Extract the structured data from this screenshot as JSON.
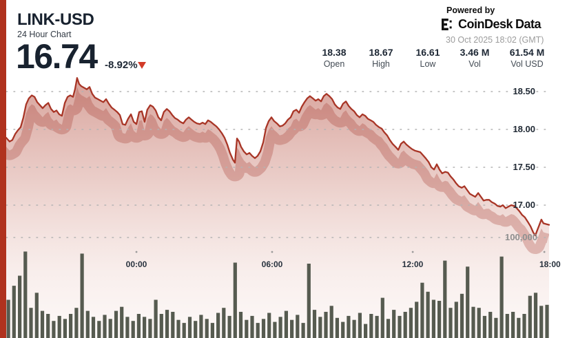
{
  "header": {
    "symbol": "LINK-USD",
    "subtitle": "24 Hour Chart",
    "price": "16.74",
    "change": "-8.92%",
    "direction": "down"
  },
  "branding": {
    "powered_by": "Powered by",
    "logo_coin": "CoinDesk",
    "logo_data": "Data",
    "timestamp": "30 Oct 2025 18:02 (GMT)"
  },
  "stats": [
    {
      "value": "18.38",
      "label": "Open"
    },
    {
      "value": "18.67",
      "label": "High"
    },
    {
      "value": "16.61",
      "label": "Low"
    },
    {
      "value": "3.46 M",
      "label": "Vol"
    },
    {
      "value": "61.54 M",
      "label": "Vol USD"
    }
  ],
  "colors": {
    "accent_red": "#b0321e",
    "line_red": "#a83526",
    "triangle_red": "#d23b28",
    "volume_bar": "#565b50",
    "title_navy": "#18222f",
    "grid_gray": "#b3b3b3",
    "muted_gray": "#9c9c9c"
  },
  "chart_data": {
    "type": "area",
    "title": "LINK-USD 24 Hour Chart",
    "x_unit": "hours since window start (24h window ending 18:00 GMT, 30 Oct 2025)",
    "x_tick_labels": [
      "00:00",
      "06:00",
      "12:00",
      "18:00"
    ],
    "x_tick_hours": [
      5.75,
      11.74,
      17.95,
      23.76
    ],
    "y_ticks": [
      "18.50",
      "18.00",
      "17.50",
      "17.00"
    ],
    "y_tick_values": [
      18.5,
      18.0,
      17.5,
      17.0
    ],
    "volume_tick": "100,000",
    "volume_tick_value": 100000,
    "price_range_shown": [
      16.55,
      18.75
    ],
    "grid": "dotted",
    "legend": "none",
    "price_points": [
      [
        0,
        17.89
      ],
      [
        0.15,
        17.84
      ],
      [
        0.27,
        17.86
      ],
      [
        0.4,
        17.94
      ],
      [
        0.52,
        17.99
      ],
      [
        0.64,
        18.03
      ],
      [
        0.76,
        18.16
      ],
      [
        0.88,
        18.33
      ],
      [
        1,
        18.41
      ],
      [
        1.13,
        18.45
      ],
      [
        1.25,
        18.43
      ],
      [
        1.37,
        18.36
      ],
      [
        1.49,
        18.32
      ],
      [
        1.61,
        18.28
      ],
      [
        1.73,
        18.32
      ],
      [
        1.86,
        18.35
      ],
      [
        1.98,
        18.27
      ],
      [
        2.1,
        18.23
      ],
      [
        2.22,
        18.25
      ],
      [
        2.34,
        18.2
      ],
      [
        2.46,
        18.18
      ],
      [
        2.59,
        18.35
      ],
      [
        2.71,
        18.43
      ],
      [
        2.83,
        18.45
      ],
      [
        2.95,
        18.43
      ],
      [
        3.04,
        18.53
      ],
      [
        3.13,
        18.68
      ],
      [
        3.22,
        18.6
      ],
      [
        3.32,
        18.57
      ],
      [
        3.44,
        18.55
      ],
      [
        3.56,
        18.53
      ],
      [
        3.68,
        18.56
      ],
      [
        3.8,
        18.47
      ],
      [
        3.92,
        18.42
      ],
      [
        4.05,
        18.4
      ],
      [
        4.17,
        18.38
      ],
      [
        4.29,
        18.36
      ],
      [
        4.41,
        18.4
      ],
      [
        4.53,
        18.34
      ],
      [
        4.65,
        18.29
      ],
      [
        4.78,
        18.26
      ],
      [
        4.9,
        18.23
      ],
      [
        5.02,
        18.19
      ],
      [
        5.14,
        18.07
      ],
      [
        5.26,
        18.06
      ],
      [
        5.38,
        18.14
      ],
      [
        5.51,
        18.2
      ],
      [
        5.63,
        18.1
      ],
      [
        5.75,
        18.07
      ],
      [
        5.87,
        18.23
      ],
      [
        5.99,
        18.24
      ],
      [
        6.11,
        18.1
      ],
      [
        6.23,
        18.26
      ],
      [
        6.36,
        18.32
      ],
      [
        6.48,
        18.3
      ],
      [
        6.6,
        18.25
      ],
      [
        6.72,
        18.16
      ],
      [
        6.84,
        18.12
      ],
      [
        6.96,
        18.23
      ],
      [
        7.09,
        18.27
      ],
      [
        7.21,
        18.24
      ],
      [
        7.33,
        18.19
      ],
      [
        7.45,
        18.15
      ],
      [
        7.57,
        18.13
      ],
      [
        7.69,
        18.1
      ],
      [
        7.82,
        18.08
      ],
      [
        7.94,
        18.13
      ],
      [
        8.06,
        18.16
      ],
      [
        8.18,
        18.13
      ],
      [
        8.3,
        18.1
      ],
      [
        8.42,
        18.08
      ],
      [
        8.55,
        18.07
      ],
      [
        8.67,
        18.09
      ],
      [
        8.79,
        18.07
      ],
      [
        8.91,
        18.12
      ],
      [
        9.03,
        18.1
      ],
      [
        9.15,
        18.07
      ],
      [
        9.28,
        18.04
      ],
      [
        9.4,
        18
      ],
      [
        9.52,
        17.95
      ],
      [
        9.64,
        17.89
      ],
      [
        9.76,
        17.8
      ],
      [
        9.88,
        17.69
      ],
      [
        10.01,
        17.6
      ],
      [
        10.1,
        17.56
      ],
      [
        10.19,
        17.88
      ],
      [
        10.28,
        17.84
      ],
      [
        10.37,
        17.77
      ],
      [
        10.49,
        17.71
      ],
      [
        10.62,
        17.67
      ],
      [
        10.74,
        17.69
      ],
      [
        10.86,
        17.65
      ],
      [
        10.98,
        17.62
      ],
      [
        11.1,
        17.65
      ],
      [
        11.22,
        17.71
      ],
      [
        11.35,
        17.83
      ],
      [
        11.47,
        18.02
      ],
      [
        11.59,
        18.11
      ],
      [
        11.71,
        18.16
      ],
      [
        11.83,
        18.11
      ],
      [
        11.95,
        18.08
      ],
      [
        12.08,
        18.04
      ],
      [
        12.2,
        18.05
      ],
      [
        12.32,
        18.08
      ],
      [
        12.44,
        18.13
      ],
      [
        12.56,
        18.16
      ],
      [
        12.68,
        18.24
      ],
      [
        12.81,
        18.26
      ],
      [
        12.93,
        18.22
      ],
      [
        13.05,
        18.3
      ],
      [
        13.17,
        18.36
      ],
      [
        13.29,
        18.41
      ],
      [
        13.41,
        18.44
      ],
      [
        13.54,
        18.41
      ],
      [
        13.66,
        18.38
      ],
      [
        13.78,
        18.4
      ],
      [
        13.9,
        18.37
      ],
      [
        14.02,
        18.44
      ],
      [
        14.14,
        18.47
      ],
      [
        14.27,
        18.44
      ],
      [
        14.39,
        18.4
      ],
      [
        14.51,
        18.33
      ],
      [
        14.63,
        18.29
      ],
      [
        14.75,
        18.27
      ],
      [
        14.87,
        18.34
      ],
      [
        15,
        18.37
      ],
      [
        15.12,
        18.31
      ],
      [
        15.24,
        18.27
      ],
      [
        15.36,
        18.24
      ],
      [
        15.48,
        18.19
      ],
      [
        15.6,
        18.16
      ],
      [
        15.73,
        18.2
      ],
      [
        15.85,
        18.18
      ],
      [
        15.97,
        18.14
      ],
      [
        16.09,
        18.12
      ],
      [
        16.21,
        18.1
      ],
      [
        16.33,
        18.06
      ],
      [
        16.46,
        18.03
      ],
      [
        16.58,
        18.01
      ],
      [
        16.7,
        17.96
      ],
      [
        16.82,
        17.92
      ],
      [
        16.94,
        17.86
      ],
      [
        17.06,
        17.81
      ],
      [
        17.19,
        17.77
      ],
      [
        17.31,
        17.73
      ],
      [
        17.43,
        17.81
      ],
      [
        17.55,
        17.84
      ],
      [
        17.67,
        17.8
      ],
      [
        17.79,
        17.77
      ],
      [
        17.92,
        17.74
      ],
      [
        18.04,
        17.72
      ],
      [
        18.16,
        17.71
      ],
      [
        18.28,
        17.7
      ],
      [
        18.4,
        17.66
      ],
      [
        18.52,
        17.62
      ],
      [
        18.65,
        17.57
      ],
      [
        18.77,
        17.5
      ],
      [
        18.89,
        17.47
      ],
      [
        19.01,
        17.54
      ],
      [
        19.13,
        17.47
      ],
      [
        19.25,
        17.42
      ],
      [
        19.38,
        17.44
      ],
      [
        19.5,
        17.43
      ],
      [
        19.62,
        17.38
      ],
      [
        19.74,
        17.34
      ],
      [
        19.86,
        17.29
      ],
      [
        19.98,
        17.25
      ],
      [
        20.11,
        17.23
      ],
      [
        20.23,
        17.25
      ],
      [
        20.35,
        17.2
      ],
      [
        20.47,
        17.15
      ],
      [
        20.59,
        17.13
      ],
      [
        20.71,
        17.11
      ],
      [
        20.84,
        17.16
      ],
      [
        20.96,
        17.11
      ],
      [
        21.08,
        17.06
      ],
      [
        21.2,
        17.07
      ],
      [
        21.32,
        17.07
      ],
      [
        21.44,
        17.04
      ],
      [
        21.57,
        17.02
      ],
      [
        21.69,
        16.99
      ],
      [
        21.81,
        16.98
      ],
      [
        21.93,
        17
      ],
      [
        22.05,
        16.96
      ],
      [
        22.17,
        16.98
      ],
      [
        22.3,
        17
      ],
      [
        22.42,
        16.99
      ],
      [
        22.54,
        16.96
      ],
      [
        22.66,
        16.92
      ],
      [
        22.78,
        16.87
      ],
      [
        22.9,
        16.84
      ],
      [
        23.03,
        16.78
      ],
      [
        23.15,
        16.72
      ],
      [
        23.27,
        16.64
      ],
      [
        23.36,
        16.6
      ],
      [
        23.45,
        16.67
      ],
      [
        23.54,
        16.74
      ],
      [
        23.63,
        16.81
      ],
      [
        23.72,
        16.76
      ],
      [
        23.84,
        16.75
      ],
      [
        23.97,
        16.74
      ]
    ],
    "volume_points": [
      38000,
      52000,
      62000,
      86000,
      30000,
      45000,
      27000,
      24000,
      17000,
      22000,
      19000,
      24000,
      30000,
      84000,
      27000,
      21000,
      17000,
      23000,
      19000,
      27000,
      31000,
      21000,
      17000,
      24000,
      21000,
      19000,
      38000,
      24000,
      28000,
      26000,
      18000,
      15000,
      21000,
      17000,
      23000,
      19000,
      15000,
      25000,
      30000,
      22000,
      75000,
      26000,
      18000,
      22000,
      15000,
      19000,
      25000,
      16000,
      21000,
      27000,
      18000,
      23000,
      15000,
      74000,
      28000,
      21000,
      26000,
      32000,
      20000,
      16000,
      22000,
      18000,
      25000,
      14000,
      24000,
      22000,
      40000,
      19000,
      28000,
      22000,
      26000,
      30000,
      36000,
      55000,
      46000,
      38000,
      37000,
      77000,
      30000,
      36000,
      44000,
      71000,
      31000,
      30000,
      22000,
      26000,
      20000,
      81000,
      24000,
      26000,
      20000,
      24000,
      42000,
      45000,
      32000,
      33000
    ]
  }
}
